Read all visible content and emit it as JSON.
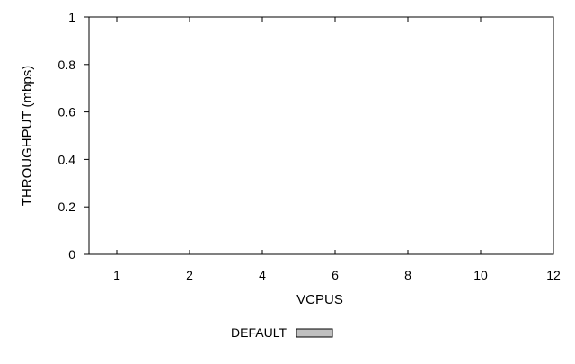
{
  "chart_data": {
    "type": "bar",
    "title": "",
    "xlabel": "VCPUS",
    "ylabel": "THROUGHPUT (mbps)",
    "categories": [
      "1",
      "2",
      "4",
      "6",
      "8",
      "10",
      "12"
    ],
    "series": [
      {
        "name": "DEFAULT",
        "values": [
          0,
          0,
          0,
          0,
          0,
          0,
          0
        ],
        "color": "#c0c0c0"
      }
    ],
    "ylim": [
      0,
      1
    ],
    "yticks": [
      0,
      0.2,
      0.4,
      0.6,
      0.8,
      1
    ],
    "ytick_labels": [
      "0",
      "0.2",
      "0.4",
      "0.6",
      "0.8",
      "1"
    ],
    "grid": false,
    "legend_position": "bottom-center"
  }
}
